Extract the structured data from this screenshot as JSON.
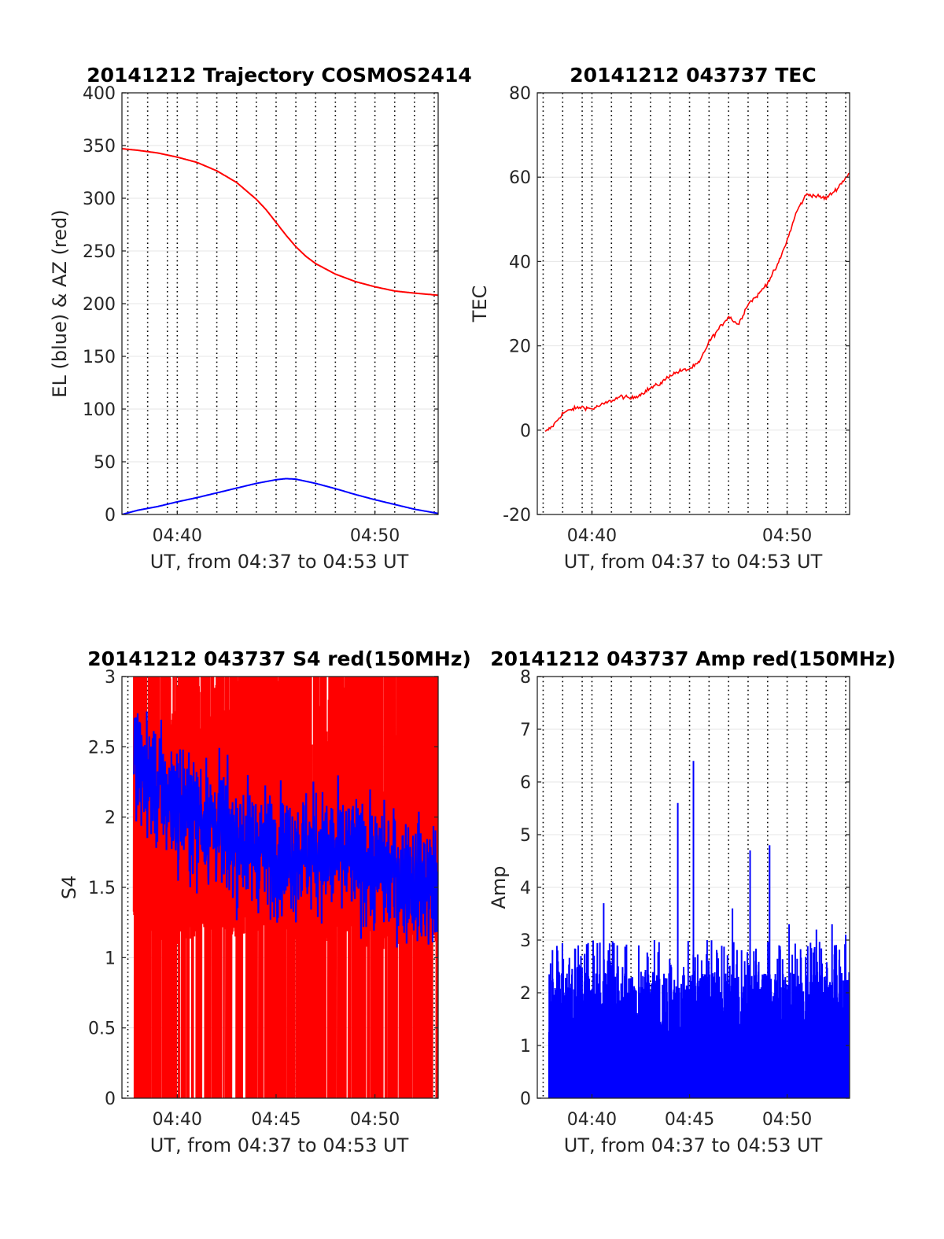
{
  "chart_data": [
    {
      "type": "line",
      "title": "20141212 Trajectory COSMOS2414",
      "xlabel": "UT, from 04:37 to 04:53 UT",
      "ylabel": "EL (blue) & AZ (red)",
      "xlim_minutes": [
        277.2,
        293.2
      ],
      "xticks": [
        {
          "v": 280,
          "label": "04:40"
        },
        {
          "v": 290,
          "label": "04:50"
        }
      ],
      "ylim": [
        0,
        400
      ],
      "yticks": [
        0,
        50,
        100,
        150,
        200,
        250,
        300,
        350,
        400
      ],
      "grid": true,
      "series": [
        {
          "color": "#ff0000",
          "x": [
            277.2,
            278,
            279,
            280,
            281,
            282,
            283,
            284,
            284.5,
            285,
            285.5,
            286,
            286.5,
            287,
            288,
            289,
            290,
            291,
            292,
            293.2
          ],
          "y": [
            347,
            345.5,
            343,
            339,
            334,
            326,
            315,
            299,
            289,
            277,
            265,
            254,
            245,
            238,
            228,
            221,
            216,
            212,
            210,
            208
          ]
        },
        {
          "color": "#0000ff",
          "x": [
            277.2,
            278,
            279,
            280,
            281,
            282,
            283,
            284,
            285,
            285.5,
            286,
            287,
            288,
            289,
            290,
            291,
            292,
            293.2
          ],
          "y": [
            0,
            4,
            7.5,
            12,
            16,
            20.5,
            25,
            29.5,
            33,
            34,
            33.5,
            29.5,
            24.5,
            19,
            14,
            9.5,
            5,
            1
          ]
        }
      ]
    },
    {
      "type": "line",
      "title": "20141212 043737 TEC",
      "xlabel": "UT, from 04:37 to 04:53 UT",
      "ylabel": "TEC",
      "xlim_minutes": [
        277.2,
        293.2
      ],
      "xticks": [
        {
          "v": 280,
          "label": "04:40"
        },
        {
          "v": 290,
          "label": "04:50"
        }
      ],
      "ylim": [
        -20,
        80
      ],
      "yticks": [
        -20,
        0,
        20,
        40,
        60,
        80
      ],
      "grid": true,
      "series": [
        {
          "color": "#ff0000",
          "x": [
            277.6,
            278,
            278.5,
            279,
            279.5,
            280,
            280.5,
            281,
            281.5,
            282,
            282.5,
            283,
            283.5,
            284,
            284.5,
            285,
            285.5,
            286,
            286.5,
            287,
            287.5,
            288,
            288.5,
            289,
            289.5,
            290,
            290.5,
            291,
            291.5,
            292,
            292.5,
            293.2
          ],
          "y": [
            -0.5,
            1,
            4,
            5,
            5.5,
            5,
            6,
            7,
            8,
            7.5,
            8.5,
            10,
            11,
            13,
            14,
            14.5,
            16,
            21,
            24,
            27,
            25,
            30,
            32,
            35,
            39,
            45,
            52,
            56,
            55.5,
            55,
            57,
            61
          ]
        }
      ]
    },
    {
      "type": "line",
      "title": "20141212 043737 S4 red(150MHz)",
      "xlabel": "UT, from 04:37 to 04:53 UT",
      "ylabel": "S4",
      "xlim_minutes": [
        277.2,
        293.2
      ],
      "xticks": [
        {
          "v": 280,
          "label": "04:40"
        },
        {
          "v": 285,
          "label": "04:45"
        },
        {
          "v": 290,
          "label": "04:50"
        }
      ],
      "ylim": [
        0,
        3
      ],
      "yticks": [
        0,
        0.5,
        1,
        1.5,
        2,
        2.5,
        3
      ],
      "grid": true,
      "series": [
        {
          "color": "#ff0000",
          "x_range": [
            277.8,
            293.2
          ],
          "low_level": 1.25,
          "high_level": 3
        },
        {
          "color": "#0000ff",
          "x_range": [
            277.8,
            293.2
          ],
          "trend_x": [
            277.8,
            279,
            281,
            283,
            285,
            287,
            289,
            291,
            293.2
          ],
          "trend_y": [
            2.4,
            2.2,
            2.0,
            1.85,
            1.75,
            1.75,
            1.7,
            1.6,
            1.5
          ]
        }
      ]
    },
    {
      "type": "line",
      "title": "20141212 043737 Amp red(150MHz)",
      "xlabel": "UT, from 04:37 to 04:53 UT",
      "ylabel": "Amp",
      "xlim_minutes": [
        277.2,
        293.2
      ],
      "xticks": [
        {
          "v": 280,
          "label": "04:40"
        },
        {
          "v": 285,
          "label": "04:45"
        },
        {
          "v": 290,
          "label": "04:50"
        }
      ],
      "ylim": [
        0,
        8
      ],
      "yticks": [
        0,
        1,
        2,
        3,
        4,
        5,
        6,
        7,
        8
      ],
      "grid": true,
      "series": [
        {
          "color": "#0000ff",
          "x_range": [
            277.8,
            293.2
          ],
          "typical_envelope": 2.4,
          "peaks": [
            {
              "x": 278.3,
              "y": 2.4
            },
            {
              "x": 279.3,
              "y": 2.9
            },
            {
              "x": 280.6,
              "y": 3.7
            },
            {
              "x": 281.3,
              "y": 2.9
            },
            {
              "x": 282.4,
              "y": 2.9
            },
            {
              "x": 283.2,
              "y": 3.0
            },
            {
              "x": 284.4,
              "y": 5.6
            },
            {
              "x": 285.2,
              "y": 6.4
            },
            {
              "x": 285.9,
              "y": 3.0
            },
            {
              "x": 287.2,
              "y": 3.6
            },
            {
              "x": 288.1,
              "y": 4.7
            },
            {
              "x": 289.1,
              "y": 4.8
            },
            {
              "x": 290.1,
              "y": 3.3
            },
            {
              "x": 291.5,
              "y": 3.2
            },
            {
              "x": 292.3,
              "y": 3.3
            },
            {
              "x": 293.0,
              "y": 3.1
            }
          ]
        }
      ]
    }
  ]
}
